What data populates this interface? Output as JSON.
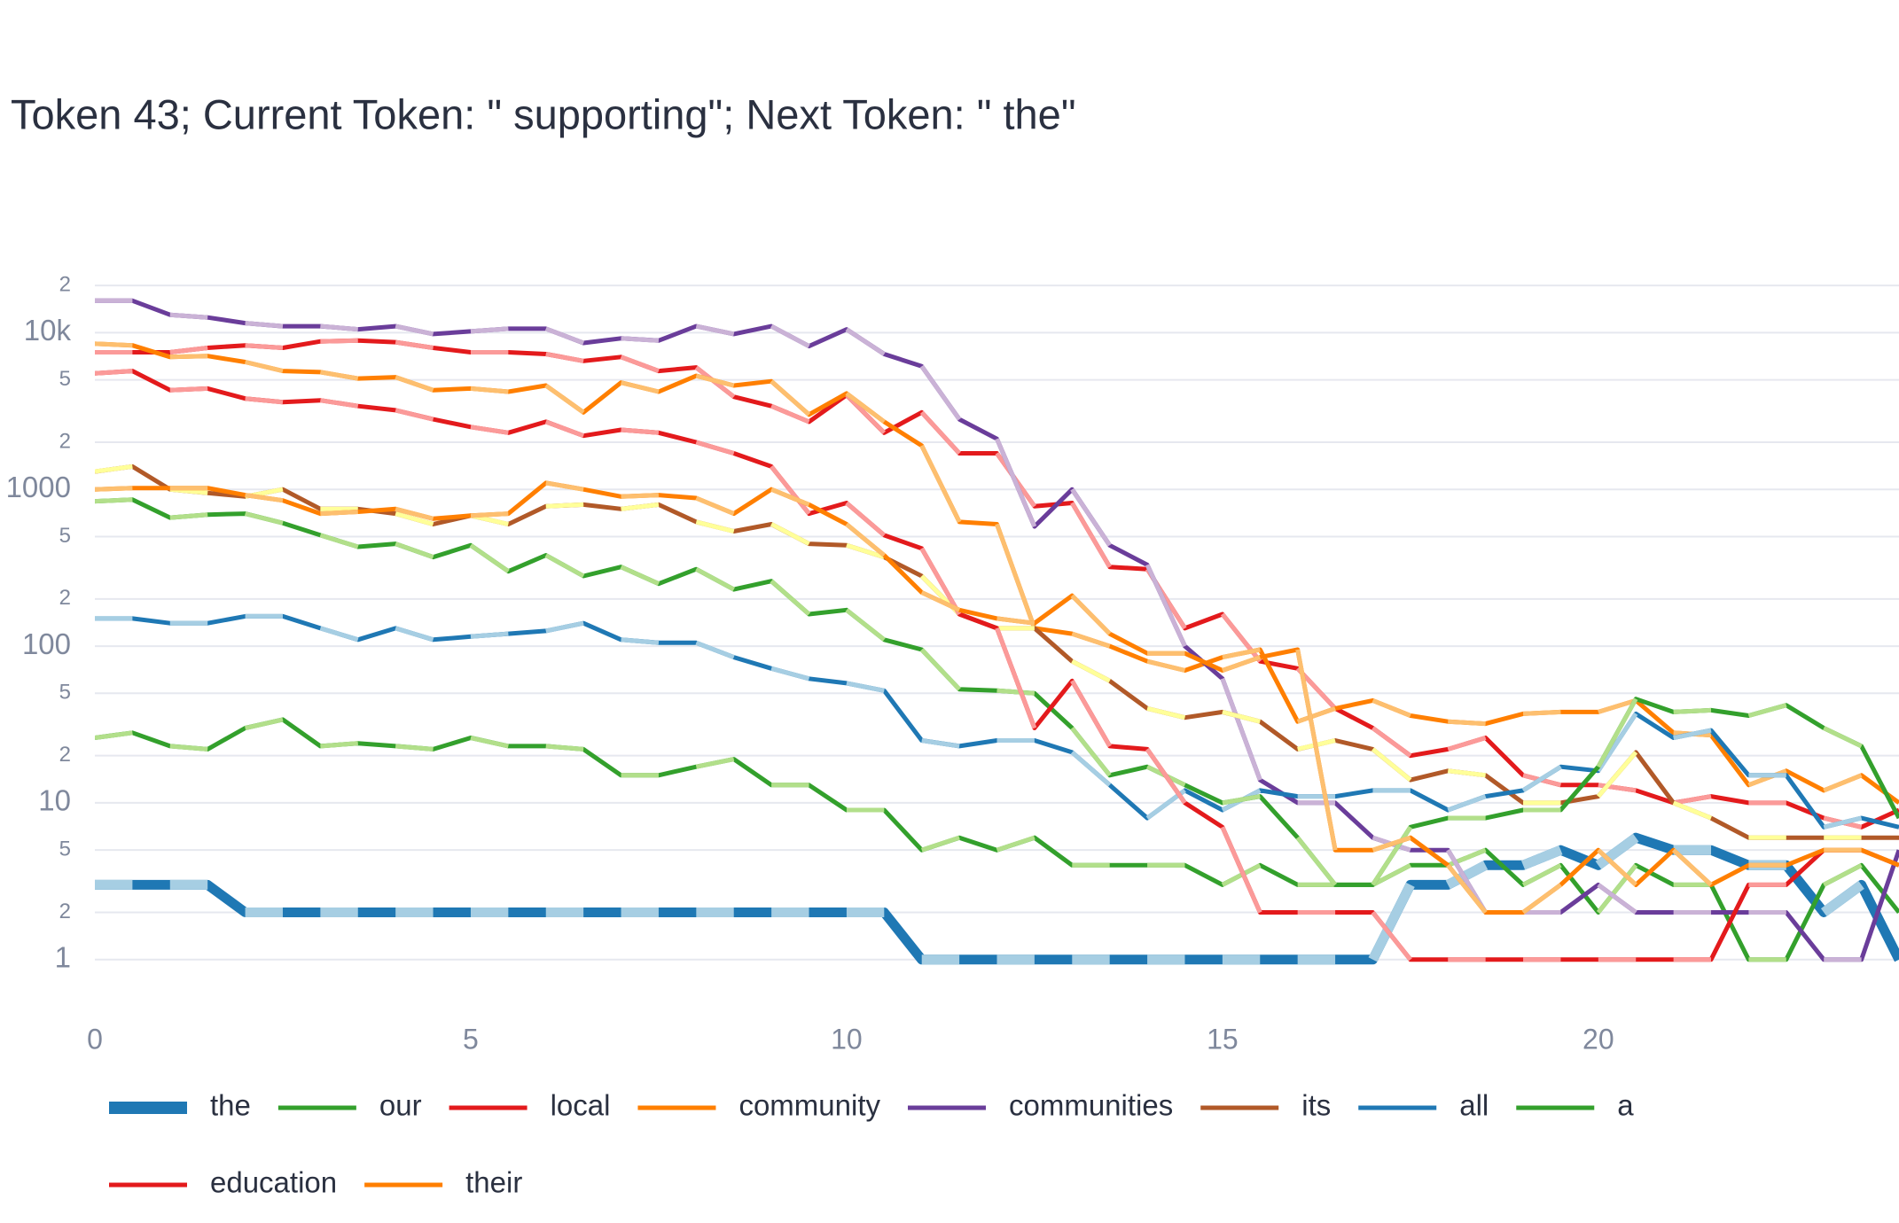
{
  "chart_data": {
    "type": "line",
    "title": "Token 43; Current Token: \" supporting\"; Next Token: \" the\"",
    "log_y": true,
    "grid": true,
    "legend": "bottom",
    "x": [
      0,
      0.5,
      1,
      1.5,
      2,
      2.5,
      3,
      3.5,
      4,
      4.5,
      5,
      5.5,
      6,
      6.5,
      7,
      7.5,
      8,
      8.5,
      9,
      9.5,
      10,
      10.5,
      11,
      11.5,
      12,
      12.5,
      13,
      13.5,
      14,
      14.5,
      15,
      15.5,
      16,
      16.5,
      17,
      17.5,
      18,
      18.5,
      19,
      19.5,
      20,
      20.5,
      21,
      21.5,
      22,
      22.5,
      23,
      23.5,
      24
    ],
    "xlim": [
      0,
      24
    ],
    "xticks": [
      0,
      5,
      10,
      15,
      20
    ],
    "ylim": [
      0.5,
      30000
    ],
    "yticks": [
      1,
      2,
      5,
      10,
      {
        "value": 20,
        "label": "2"
      },
      {
        "value": 50,
        "label": "5"
      },
      100,
      {
        "value": 200,
        "label": "2"
      },
      {
        "value": 500,
        "label": "5"
      },
      1000,
      {
        "value": 2000,
        "label": "2"
      },
      {
        "value": 5000,
        "label": "5"
      },
      {
        "value": 10000,
        "label": "10k"
      },
      {
        "value": 20000,
        "label": "2"
      }
    ],
    "series": [
      {
        "name": "the",
        "colors": [
          "#a6cee3",
          "#1f78b4"
        ],
        "values": [
          3,
          3,
          3,
          3,
          2,
          2,
          2,
          2,
          2,
          2,
          2,
          2,
          2,
          2,
          2,
          2,
          2,
          2,
          2,
          2,
          2,
          2,
          1,
          1,
          1,
          1,
          1,
          1,
          1,
          1,
          1,
          1,
          1,
          1,
          1,
          3,
          3,
          4,
          4,
          5,
          4,
          6,
          5,
          5,
          4,
          4,
          2,
          3,
          1
        ]
      },
      {
        "name": "our",
        "colors": [
          "#b2df8a",
          "#33a02c"
        ],
        "values": [
          26,
          28,
          23,
          22,
          30,
          34,
          23,
          24,
          23,
          22,
          26,
          23,
          23,
          22,
          15,
          15,
          17,
          19,
          13,
          13,
          9,
          9,
          5,
          6,
          5,
          6,
          4,
          4,
          4,
          4,
          3,
          4,
          3,
          3,
          3,
          4,
          4,
          5,
          3,
          4,
          2,
          4,
          3,
          3,
          1,
          1,
          3,
          4,
          2
        ]
      },
      {
        "name": "local",
        "colors": [
          "#fb9a99",
          "#e31a1c"
        ],
        "values": [
          7500,
          7500,
          7500,
          8000,
          8300,
          8000,
          8800,
          8900,
          8700,
          8000,
          7500,
          7500,
          7300,
          6600,
          7000,
          5700,
          6000,
          3900,
          3400,
          2700,
          4000,
          2300,
          3100,
          1700,
          1700,
          780,
          820,
          320,
          310,
          130,
          160,
          80,
          72,
          40,
          30,
          20,
          22,
          26,
          15,
          13,
          13,
          12,
          10,
          11,
          10,
          10,
          8,
          7,
          9
        ]
      },
      {
        "name": "community",
        "colors": [
          "#fdbf6f",
          "#ff7f00"
        ],
        "values": [
          8500,
          8300,
          7000,
          7100,
          6500,
          5700,
          5600,
          5100,
          5200,
          4300,
          4400,
          4200,
          4600,
          3100,
          4800,
          4200,
          5300,
          4600,
          4900,
          3000,
          4100,
          2700,
          1900,
          620,
          600,
          130,
          120,
          100,
          80,
          70,
          85,
          95,
          33,
          40,
          45,
          36,
          33,
          32,
          37,
          38,
          38,
          45,
          28,
          27,
          13,
          16,
          12,
          15,
          10
        ]
      },
      {
        "name": "communities",
        "colors": [
          "#cab2d6",
          "#6a3d9a"
        ],
        "values": [
          16000,
          16000,
          13000,
          12500,
          11500,
          11000,
          11000,
          10500,
          11000,
          9800,
          10200,
          10600,
          10600,
          8600,
          9200,
          8900,
          11000,
          9800,
          11000,
          8200,
          10500,
          7300,
          6100,
          2800,
          2100,
          580,
          1000,
          440,
          330,
          100,
          62,
          14,
          10,
          10,
          6,
          5,
          5,
          2,
          2,
          2,
          3,
          2,
          2,
          2,
          2,
          2,
          1,
          1,
          5
        ]
      },
      {
        "name": "its",
        "colors": [
          "#ffff99",
          "#b15928"
        ],
        "values": [
          1300,
          1400,
          1000,
          950,
          900,
          1000,
          750,
          750,
          700,
          600,
          680,
          600,
          780,
          800,
          750,
          800,
          620,
          540,
          600,
          450,
          440,
          370,
          280,
          160,
          130,
          130,
          80,
          60,
          40,
          35,
          38,
          33,
          22,
          25,
          22,
          14,
          16,
          15,
          10,
          10,
          11,
          21,
          10,
          8,
          6,
          6,
          6,
          6,
          6
        ]
      },
      {
        "name": "all",
        "colors": [
          "#a6cee3",
          "#1f78b4"
        ],
        "values": [
          150,
          150,
          140,
          140,
          155,
          155,
          130,
          110,
          130,
          110,
          115,
          120,
          125,
          140,
          110,
          105,
          105,
          85,
          72,
          62,
          58,
          52,
          25,
          23,
          25,
          25,
          21,
          13,
          8,
          12,
          9,
          12,
          11,
          11,
          12,
          12,
          9,
          11,
          12,
          17,
          16,
          37,
          26,
          29,
          15,
          15,
          7,
          8,
          7
        ]
      },
      {
        "name": "a",
        "colors": [
          "#b2df8a",
          "#33a02c"
        ],
        "values": [
          840,
          860,
          660,
          690,
          700,
          610,
          510,
          430,
          450,
          370,
          440,
          300,
          380,
          280,
          320,
          250,
          310,
          230,
          260,
          160,
          170,
          110,
          95,
          53,
          52,
          50,
          30,
          15,
          17,
          13,
          10,
          11,
          6,
          3,
          3,
          7,
          8,
          8,
          9,
          9,
          17,
          46,
          38,
          39,
          36,
          42,
          30,
          23,
          8
        ]
      },
      {
        "name": "education",
        "colors": [
          "#fb9a99",
          "#e31a1c"
        ],
        "values": [
          5500,
          5700,
          4300,
          4400,
          3800,
          3600,
          3700,
          3400,
          3200,
          2800,
          2500,
          2300,
          2700,
          2200,
          2400,
          2300,
          2000,
          1700,
          1400,
          700,
          820,
          510,
          420,
          160,
          130,
          30,
          60,
          23,
          22,
          10,
          7,
          2,
          2,
          2,
          2,
          1,
          1,
          1,
          1,
          1,
          1,
          1,
          1,
          1,
          3,
          3,
          5,
          5,
          4
        ]
      },
      {
        "name": "their",
        "colors": [
          "#fdbf6f",
          "#ff7f00"
        ],
        "values": [
          1000,
          1020,
          1020,
          1020,
          920,
          850,
          700,
          720,
          750,
          650,
          680,
          700,
          1100,
          1000,
          900,
          920,
          880,
          700,
          1000,
          800,
          600,
          380,
          220,
          170,
          150,
          140,
          210,
          120,
          90,
          90,
          70,
          85,
          95,
          5,
          5,
          6,
          4,
          2,
          2,
          3,
          5,
          3,
          5,
          3,
          4,
          4,
          5,
          5,
          4
        ]
      }
    ]
  }
}
